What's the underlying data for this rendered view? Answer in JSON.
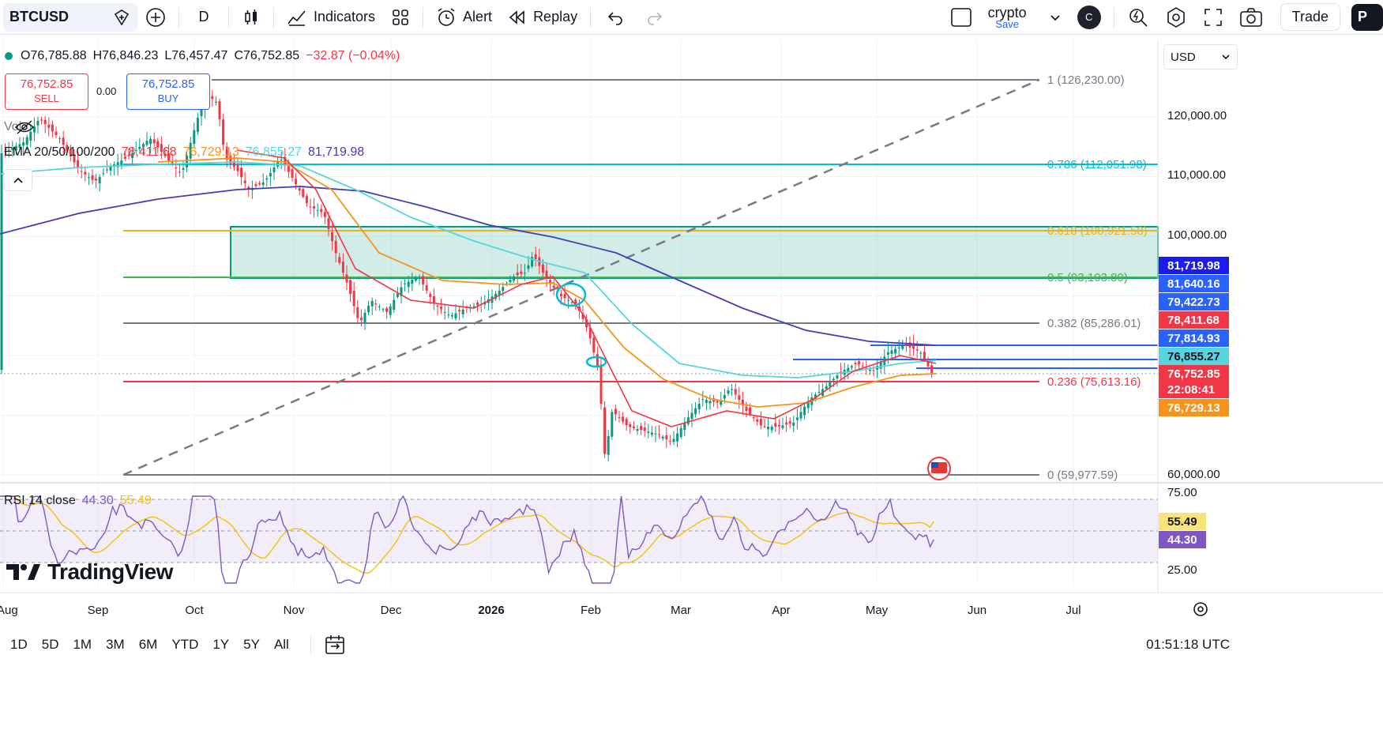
{
  "toolbar": {
    "symbol": "BTCUSD",
    "interval": "D",
    "indicators_label": "Indicators",
    "alert_label": "Alert",
    "replay_label": "Replay",
    "layout_name": "crypto",
    "save_label": "Save",
    "avatar_letter": "C",
    "trade_label": "Trade",
    "publish_label": "P"
  },
  "legend": {
    "open": "O76,785.88",
    "high": "H76,846.23",
    "low": "L76,457.47",
    "close": "C76,752.85",
    "change": "−32.87 (−0.04%)",
    "sell_price": "76,752.85",
    "sell_label": "SELL",
    "spread": "0.00",
    "buy_price": "76,752.85",
    "buy_label": "BUY",
    "vol_label": "Vol",
    "ema_label": "EMA 20/50/100/200",
    "ema20": "78,411.68",
    "ema50": "76,729.13",
    "ema100": "76,855.27",
    "ema200": "81,719.98",
    "rsi_label": "RSI 14 close",
    "rsi_value": "44.30",
    "rsi_ma": "55.49",
    "brand": "TradingView"
  },
  "currency": "USD",
  "colors": {
    "up": "#089981",
    "down": "#f23645",
    "ema20": "#f23645",
    "ema50": "#f7931a",
    "ema100": "#56d5e0",
    "ema200": "#3f3fb5",
    "rsi": "#7e57c2",
    "rsi_ma": "#f7c00a"
  },
  "price_axis": {
    "ticks": [
      "120,000.00",
      "110,000.00",
      "100,000.00",
      "60,000.00"
    ],
    "badges": [
      {
        "text": "81,719.98",
        "color": "#1c1cf0"
      },
      {
        "text": "81,640.16",
        "color": "#2962ff"
      },
      {
        "text": "79,422.73",
        "color": "#2962ff"
      },
      {
        "text": "78,411.68",
        "color": "#f23645"
      },
      {
        "text": "77,814.93",
        "color": "#2962ff"
      },
      {
        "text": "76,855.27",
        "color": "#56d5e0",
        "text_color": "#131722"
      },
      {
        "text": "76,752.85",
        "color": "#f23645"
      },
      {
        "text": "22:08:41",
        "color": "#f23645"
      },
      {
        "text": "76,729.13",
        "color": "#f7931a"
      }
    ]
  },
  "rsi_axis": {
    "ticks": [
      "75.00",
      "25.00"
    ],
    "badges": [
      {
        "text": "55.49",
        "color": "#f7e479",
        "text_color": "#131722"
      },
      {
        "text": "44.30",
        "color": "#7e57c2"
      }
    ]
  },
  "fib_levels": [
    {
      "label": "1 (126,230.00)",
      "color": "#787b86"
    },
    {
      "label": "0.786 (112,051.98)",
      "color": "#00bcd4"
    },
    {
      "label": "0.618 (100,921.58)",
      "color": "#e6b422"
    },
    {
      "label": "0.5 (93,103.80)",
      "color": "#4caf50"
    },
    {
      "label": "0.382 (85,286.01)",
      "color": "#787b86"
    },
    {
      "label": "0.236 (75,613.16)",
      "color": "#f23645"
    },
    {
      "label": "0 (59,977.59)",
      "color": "#787b86"
    }
  ],
  "time_axis": [
    "Aug",
    "Sep",
    "Oct",
    "Nov",
    "Dec",
    "2026",
    "Feb",
    "Mar",
    "Apr",
    "May",
    "Jun",
    "Jul"
  ],
  "ranges": [
    "1D",
    "5D",
    "1M",
    "3M",
    "6M",
    "YTD",
    "1Y",
    "5Y",
    "All"
  ],
  "clock": "01:51:18 UTC"
}
